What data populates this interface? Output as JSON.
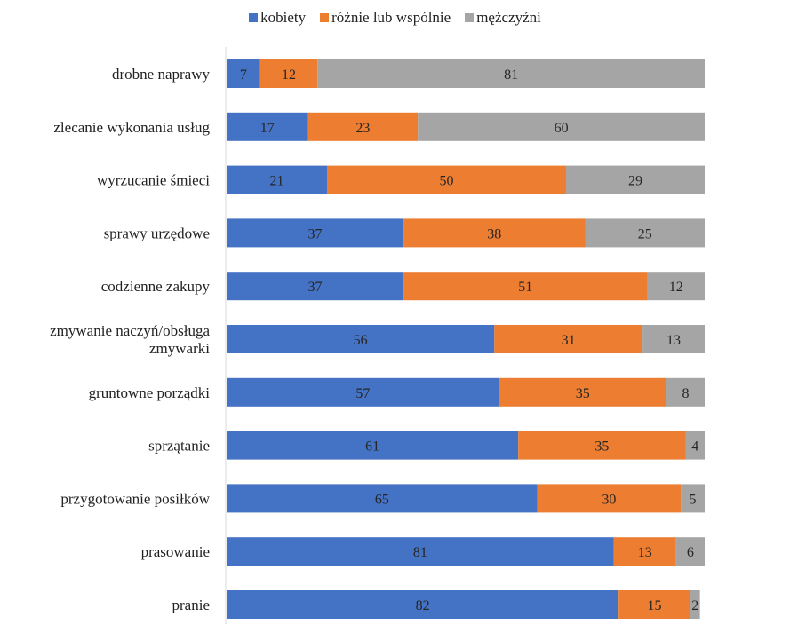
{
  "chart_data": {
    "type": "bar",
    "orientation": "horizontal",
    "stacked": true,
    "legend_position": "top",
    "grid": false,
    "xlim": [
      0,
      100
    ],
    "categories": [
      "drobne naprawy",
      "zlecanie wykonania usług",
      "wyrzucanie śmieci",
      "sprawy urzędowe",
      "codzienne zakupy",
      "zmywanie naczyń/obsługa zmywarki",
      "gruntowne porządki",
      "sprzątanie",
      "przygotowanie posiłków",
      "prasowanie",
      "pranie"
    ],
    "category_lines": [
      [
        "drobne naprawy"
      ],
      [
        "zlecanie wykonania usług"
      ],
      [
        "wyrzucanie śmieci"
      ],
      [
        "sprawy urzędowe"
      ],
      [
        "codzienne zakupy"
      ],
      [
        "zmywanie naczyń/obsługa",
        "zmywarki"
      ],
      [
        "gruntowne porządki"
      ],
      [
        "sprzątanie"
      ],
      [
        "przygotowanie posiłków"
      ],
      [
        "prasowanie"
      ],
      [
        "pranie"
      ]
    ],
    "series": [
      {
        "name": "kobiety",
        "color": "#4472C4",
        "values": [
          7,
          17,
          21,
          37,
          37,
          56,
          57,
          61,
          65,
          81,
          82
        ]
      },
      {
        "name": "różnie lub wspólnie",
        "color": "#ED7D31",
        "values": [
          12,
          23,
          50,
          38,
          51,
          31,
          35,
          35,
          30,
          13,
          15
        ]
      },
      {
        "name": "mężczyźni",
        "color": "#A5A5A5",
        "values": [
          81,
          60,
          29,
          25,
          12,
          13,
          8,
          4,
          5,
          6,
          2
        ]
      }
    ]
  }
}
